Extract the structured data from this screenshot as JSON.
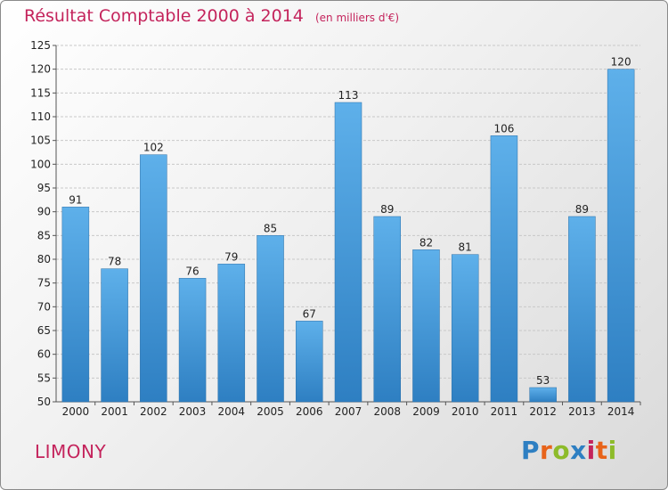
{
  "header": {
    "title": "Résultat Comptable 2000 à 2014",
    "unit": "(en milliers d'€)"
  },
  "footer": {
    "commune": "LIMONY",
    "brand": "Proxiti"
  },
  "colors": {
    "title": "#c4245c",
    "bar_light": "#5eb0ea",
    "bar_dark": "#2e7fc2",
    "logo_letters": [
      "#2e7fc2",
      "#e8631a",
      "#8dbb2a",
      "#2e7fc2",
      "#c4245c",
      "#e8631a",
      "#8dbb2a"
    ]
  },
  "chart_data": {
    "type": "bar",
    "title": "Résultat Comptable 2000 à 2014",
    "subtitle": "(en milliers d'€)",
    "xlabel": "",
    "ylabel": "",
    "categories": [
      "2000",
      "2001",
      "2002",
      "2003",
      "2004",
      "2005",
      "2006",
      "2007",
      "2008",
      "2009",
      "2010",
      "2011",
      "2012",
      "2013",
      "2014"
    ],
    "values": [
      91,
      78,
      102,
      76,
      79,
      85,
      67,
      113,
      89,
      82,
      81,
      106,
      53,
      89,
      120
    ],
    "ylim": [
      50,
      125
    ],
    "yticks": [
      50,
      55,
      60,
      65,
      70,
      75,
      80,
      85,
      90,
      95,
      100,
      105,
      110,
      115,
      120,
      125
    ],
    "grid": true
  }
}
